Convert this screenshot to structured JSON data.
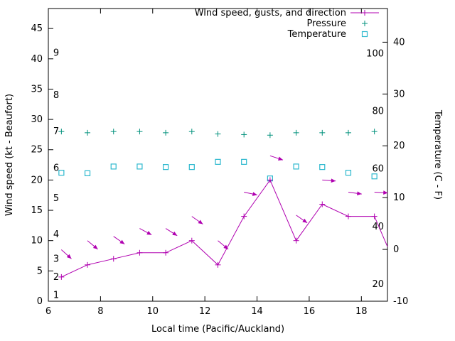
{
  "chart_data": {
    "type": "line",
    "title": "",
    "x_axis": {
      "label": "Local time (Pacific/Auckland)",
      "range": [
        6,
        19
      ],
      "ticks": [
        6,
        8,
        10,
        12,
        14,
        16,
        18
      ]
    },
    "y_axis_left": {
      "label": "Wind speed (kt - Beaufort)",
      "range": [
        0,
        48.3
      ],
      "ticks": [
        0,
        5,
        10,
        15,
        20,
        25,
        30,
        35,
        40,
        45
      ],
      "beaufort_labels": [
        {
          "text": "1",
          "value": 1
        },
        {
          "text": "2",
          "value": 4
        },
        {
          "text": "3",
          "value": 7
        },
        {
          "text": "4",
          "value": 11
        },
        {
          "text": "5",
          "value": 17
        },
        {
          "text": "6",
          "value": 22
        },
        {
          "text": "7",
          "value": 28
        },
        {
          "text": "8",
          "value": 34
        },
        {
          "text": "9",
          "value": 41
        }
      ]
    },
    "y_axis_right": {
      "label": "Temperature (C - F)",
      "range": [
        -10,
        46.5
      ],
      "ticks": [
        -10,
        0,
        10,
        20,
        30,
        40
      ],
      "fahrenheit_labels": [
        {
          "text": "20",
          "value_c": -6.7
        },
        {
          "text": "40",
          "value_c": 4.4
        },
        {
          "text": "60",
          "value_c": 15.6
        },
        {
          "text": "80",
          "value_c": 26.7
        },
        {
          "text": "100",
          "value_c": 37.8
        }
      ]
    },
    "legend": [
      {
        "label": "Wind speed, gusts, and direction",
        "series": "wind_speed",
        "color": "#b000b0",
        "marker": "line-plus"
      },
      {
        "label": "Pressure",
        "series": "pressure",
        "color": "#00917c",
        "marker": "plus"
      },
      {
        "label": "Temperature",
        "series": "temperature",
        "color": "#2cb8ce",
        "marker": "open-square"
      }
    ],
    "colors": {
      "wind": "#b000b0",
      "pressure": "#00917c",
      "temperature": "#2cb8ce",
      "axis": "#000000"
    },
    "series": {
      "wind_speed": {
        "axis": "left",
        "style": "linespoints-plus",
        "x": [
          6.5,
          7.5,
          8.5,
          9.5,
          10.5,
          11.5,
          12.5,
          13.5,
          14.5,
          15.5,
          16.5,
          17.5,
          18.5,
          19
        ],
        "y": [
          4,
          6,
          7,
          8,
          8,
          10,
          6,
          14,
          20,
          10,
          16,
          14,
          14,
          9
        ]
      },
      "wind_gust_arrows": {
        "axis": "left",
        "style": "direction-arrows",
        "points": [
          {
            "x": 6.5,
            "y": 8.5,
            "angle_deg": 42
          },
          {
            "x": 7.5,
            "y": 10,
            "angle_deg": 40
          },
          {
            "x": 8.5,
            "y": 10.7,
            "angle_deg": 35
          },
          {
            "x": 9.5,
            "y": 12,
            "angle_deg": 28
          },
          {
            "x": 10.5,
            "y": 12,
            "angle_deg": 32
          },
          {
            "x": 11.5,
            "y": 14,
            "angle_deg": 35
          },
          {
            "x": 12.5,
            "y": 10,
            "angle_deg": 40
          },
          {
            "x": 13.5,
            "y": 18,
            "angle_deg": 12
          },
          {
            "x": 14.5,
            "y": 24,
            "angle_deg": 18
          },
          {
            "x": 15.5,
            "y": 14.2,
            "angle_deg": 35
          },
          {
            "x": 16.5,
            "y": 20,
            "angle_deg": 4
          },
          {
            "x": 17.5,
            "y": 18,
            "angle_deg": 8
          },
          {
            "x": 18.5,
            "y": 18,
            "angle_deg": 3
          }
        ]
      },
      "pressure": {
        "axis": "left",
        "style": "points-plus",
        "x": [
          6.5,
          7.5,
          8.5,
          9.5,
          10.5,
          11.5,
          12.5,
          13.5,
          14.5,
          15.5,
          16.5,
          17.5,
          18.5
        ],
        "y": [
          28,
          27.8,
          28,
          28,
          27.8,
          28,
          27.6,
          27.5,
          27.4,
          27.8,
          27.8,
          27.8,
          28
        ]
      },
      "temperature": {
        "axis": "right",
        "style": "points-square",
        "x": [
          6.5,
          7.5,
          8.5,
          9.5,
          10.5,
          11.5,
          12.5,
          13.5,
          14.5,
          15.5,
          16.5,
          17.5,
          18.5
        ],
        "y_celsius": [
          14.8,
          14.7,
          16.0,
          16.0,
          15.9,
          15.9,
          16.9,
          16.9,
          13.7,
          16.0,
          15.9,
          14.8,
          14.1
        ]
      }
    }
  }
}
